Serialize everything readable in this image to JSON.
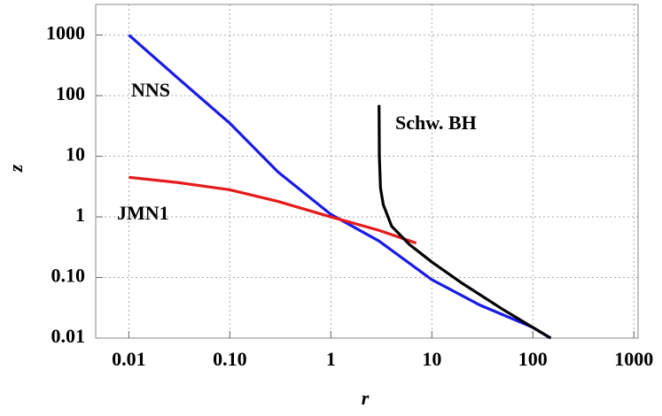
{
  "chart_data": {
    "type": "line",
    "x_label": "r",
    "y_label": "z",
    "log_x": true,
    "log_y": true,
    "grid": true,
    "xlim": [
      0.0047,
      1100
    ],
    "ylim": [
      0.01,
      3200
    ],
    "xticks": [
      0.01,
      {
        "value": 0.1,
        "label": "0.10"
      },
      1,
      10,
      100,
      1000
    ],
    "yticks": [
      0.01,
      {
        "value": 0.1,
        "label": "0.10"
      },
      1,
      10,
      100,
      1000
    ],
    "series": [
      {
        "name": "NNS",
        "color": "#1a1ae6",
        "x": [
          0.01,
          0.03,
          0.1,
          0.3,
          1,
          3,
          10,
          30,
          100,
          150
        ],
        "values": [
          1000,
          200,
          35,
          5.5,
          1.1,
          0.4,
          0.092,
          0.035,
          0.015,
          0.01
        ]
      },
      {
        "name": "JMN1",
        "color": "#e61a1a",
        "x": [
          0.01,
          0.03,
          0.1,
          0.3,
          1,
          3,
          7
        ],
        "values": [
          4.5,
          3.7,
          2.8,
          1.8,
          1.0,
          0.6,
          0.37
        ]
      },
      {
        "name": "Schw. BH",
        "color": "#000000",
        "x": [
          3,
          3.02,
          3.1,
          3.3,
          4,
          6,
          10,
          20,
          50,
          100,
          150
        ],
        "values": [
          70,
          10,
          3,
          1.6,
          0.7,
          0.35,
          0.18,
          0.08,
          0.03,
          0.015,
          0.01
        ]
      }
    ]
  }
}
